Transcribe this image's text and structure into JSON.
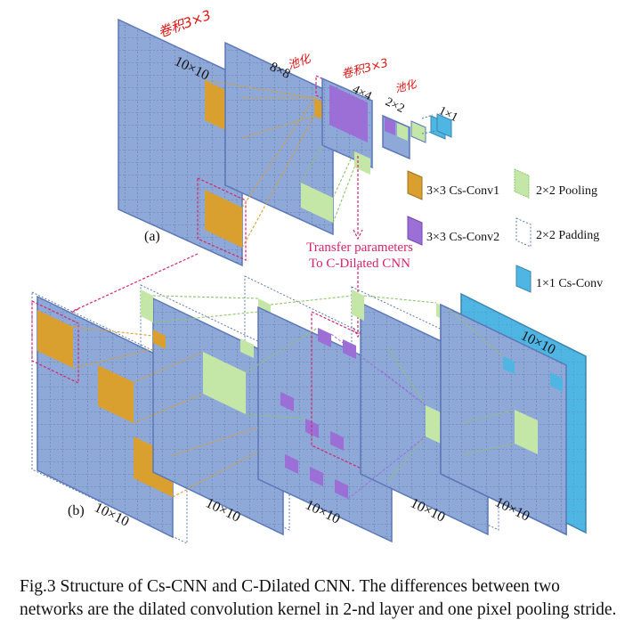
{
  "panel_a": {
    "label": "(a)",
    "size_labels": [
      "10×10",
      "8×8",
      "4×4",
      "2×2",
      "1×1"
    ],
    "handwritten": [
      "卷积3×3",
      "池化",
      "卷积3×3",
      "池化"
    ]
  },
  "panel_b": {
    "label": "(b)",
    "size_labels": [
      "10×10",
      "10×10",
      "10×10",
      "10×10",
      "10×10",
      "10×10"
    ]
  },
  "legend": [
    {
      "text": "3×3 Cs-Conv1",
      "color": "#d9a030"
    },
    {
      "text": "2×2 Pooling",
      "color": "#c4e6a6"
    },
    {
      "text": "3×3 Cs-Conv2",
      "color": "#9b6fd6"
    },
    {
      "text": "2×2 Padding",
      "color": "#ffffff"
    },
    {
      "text": "1×1 Cs-Conv",
      "color": "#4fb6e4"
    }
  ],
  "transfer_text": [
    "Transfer parameters",
    "To C-Dilated CNN"
  ],
  "caption": "Fig.3 Structure of Cs-CNN and C-Dilated CNN. The differences between two networks are the dilated convolution kernel in 2-nd layer and one pixel pooling stride.",
  "colors": {
    "grid_fill": "#8ea8d8",
    "grid_edge": "#5b78b8",
    "orange": "#d9a030",
    "green": "#c4e6a6",
    "purple": "#9b6fd6",
    "blue": "#4fb6e4",
    "transfer_pink": "#d6246e"
  }
}
